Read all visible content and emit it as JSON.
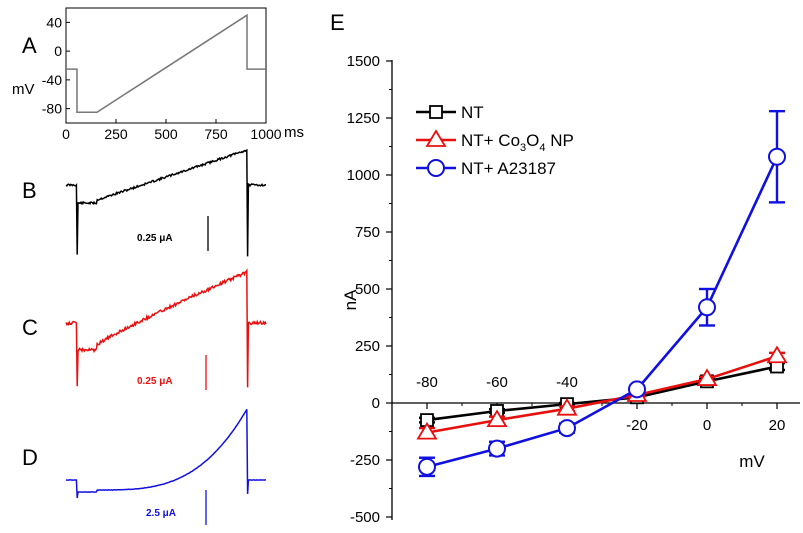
{
  "panels": {
    "A": {
      "letter": "A",
      "ylabel": "mV",
      "xlabel": "ms",
      "yticks": [
        "40",
        "0",
        "-40",
        "-80"
      ],
      "xticks": [
        "0",
        "250",
        "500",
        "750",
        "1000"
      ],
      "protocol": [
        [
          0,
          -25
        ],
        [
          55,
          -25
        ],
        [
          55,
          -85
        ],
        [
          155,
          -85
        ],
        [
          905,
          50
        ],
        [
          905,
          -25
        ],
        [
          1000,
          -25
        ]
      ]
    },
    "B": {
      "letter": "B",
      "scale_label": "0.25 μA",
      "color": "#000000"
    },
    "C": {
      "letter": "C",
      "scale_label": "0.25 μA",
      "color": "#e8100f"
    },
    "D": {
      "letter": "D",
      "scale_label": "2.5 μA",
      "color": "#1010e0"
    },
    "E": {
      "letter": "E"
    }
  },
  "chart_data": {
    "type": "line",
    "xlabel": "mV",
    "ylabel": "nA",
    "x": [
      -80,
      -60,
      -40,
      -20,
      0,
      20
    ],
    "xlim": [
      -85,
      27
    ],
    "ylim": [
      -500,
      1500
    ],
    "xticks": [
      "-80",
      "-60",
      "-40",
      "-20",
      "0",
      "20"
    ],
    "yticks": [
      "-500",
      "-250",
      "0",
      "250",
      "500",
      "750",
      "1000",
      "1250",
      "1500"
    ],
    "legend_position": "top-left",
    "series": [
      {
        "name": "NT",
        "color": "#000000",
        "marker": "square",
        "values": [
          -75,
          -35,
          -5,
          25,
          95,
          160
        ],
        "errors": [
          10,
          8,
          5,
          5,
          12,
          15
        ]
      },
      {
        "name": "NT+ Co3O4 NP",
        "legend_text": "NT+ Co",
        "legend_sub1": "3",
        "legend_mid": "O",
        "legend_sub2": "4",
        "legend_end": " NP",
        "color": "#e8100f",
        "marker": "triangle",
        "values": [
          -130,
          -75,
          -25,
          35,
          105,
          205
        ],
        "errors": [
          20,
          15,
          10,
          5,
          10,
          15
        ]
      },
      {
        "name": "NT+ A23187",
        "color": "#1010e0",
        "marker": "circle",
        "values": [
          -280,
          -200,
          -110,
          60,
          420,
          1080
        ],
        "errors": [
          40,
          30,
          20,
          15,
          80,
          200
        ]
      }
    ]
  }
}
